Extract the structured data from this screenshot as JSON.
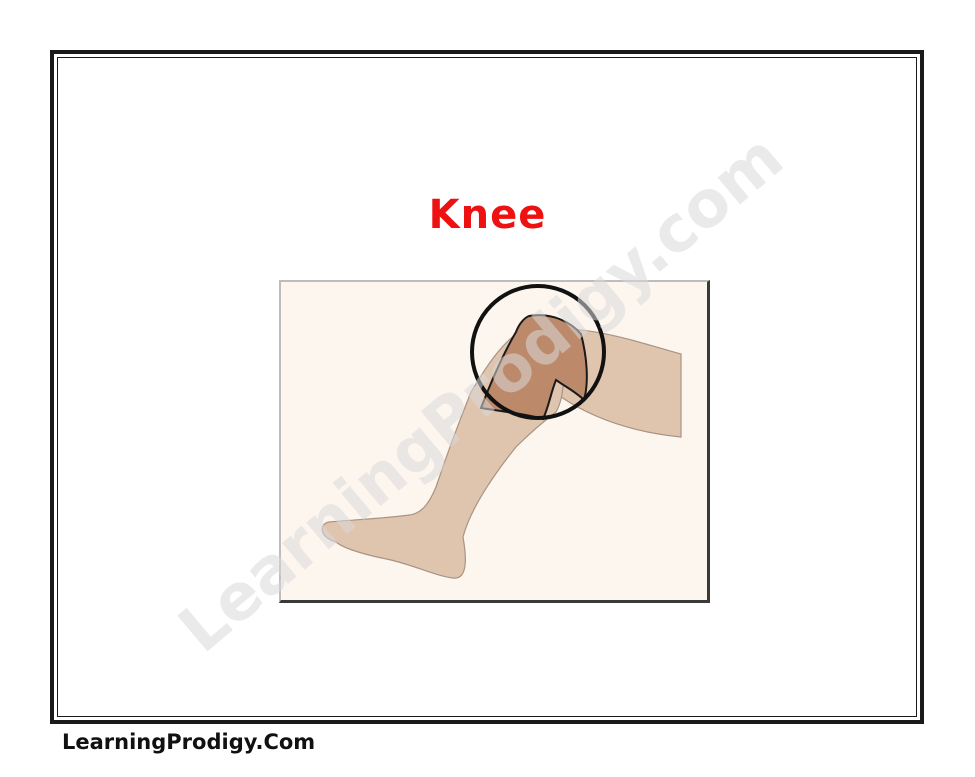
{
  "card": {
    "title": "Knee",
    "title_color": "#ee1111"
  },
  "illustration": {
    "subject": "leg-with-knee-circled",
    "skin_color": "#dfc4ae",
    "highlight_color": "#bc8a6b",
    "background_color": "#fdf6ef"
  },
  "watermark": {
    "text": "LearningProdigy.com"
  },
  "footer": {
    "site_label": "LearningProdigy.Com"
  }
}
